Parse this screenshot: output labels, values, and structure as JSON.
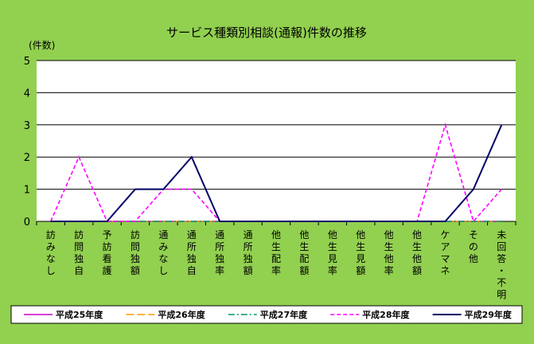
{
  "chart_data": {
    "type": "line",
    "title": "サービス種類別相談(通報)件数の推移",
    "ylabel": "(件数)",
    "ylim": [
      0,
      5
    ],
    "yticks": [
      "0",
      "1",
      "2",
      "3",
      "4",
      "5"
    ],
    "grid": true,
    "legend_position": "bottom",
    "categories": [
      "訪みなし",
      "訪問独自",
      "予訪看護",
      "訪問独額",
      "通みなし",
      "通所独自",
      "通所独率",
      "通所独額",
      "他生配率",
      "他生配額",
      "他生見率",
      "他生見額",
      "他生他率",
      "他生他額",
      "ケアマネ",
      "その他",
      "未回答・不明"
    ],
    "series": [
      {
        "name": "平成25年度",
        "color": "#cc00cc",
        "dash": "solid",
        "values": [
          0,
          0,
          0,
          0,
          0,
          0,
          0,
          0,
          0,
          0,
          0,
          0,
          0,
          0,
          0,
          0,
          0
        ]
      },
      {
        "name": "平成26年度",
        "color": "#ff9900",
        "dash": "long",
        "values": [
          0,
          0,
          0,
          0,
          0,
          0,
          0,
          0,
          0,
          0,
          0,
          0,
          0,
          0,
          0,
          0,
          0
        ]
      },
      {
        "name": "平成27年度",
        "color": "#009966",
        "dash": "dashdot",
        "values": [
          0,
          0,
          0,
          0,
          0,
          0,
          0,
          0,
          0,
          0,
          0,
          0,
          0,
          0,
          0,
          0,
          0
        ]
      },
      {
        "name": "平成28年度",
        "color": "#ff00ff",
        "dash": "short",
        "values": [
          0,
          2,
          0,
          0,
          1,
          1,
          0,
          0,
          0,
          0,
          0,
          0,
          0,
          0,
          3,
          0,
          1
        ]
      },
      {
        "name": "平成29年度",
        "color": "#000066",
        "dash": "solid",
        "values": [
          0,
          0,
          0,
          1,
          1,
          2,
          0,
          0,
          0,
          0,
          0,
          0,
          0,
          0,
          0,
          1,
          3
        ]
      }
    ]
  }
}
